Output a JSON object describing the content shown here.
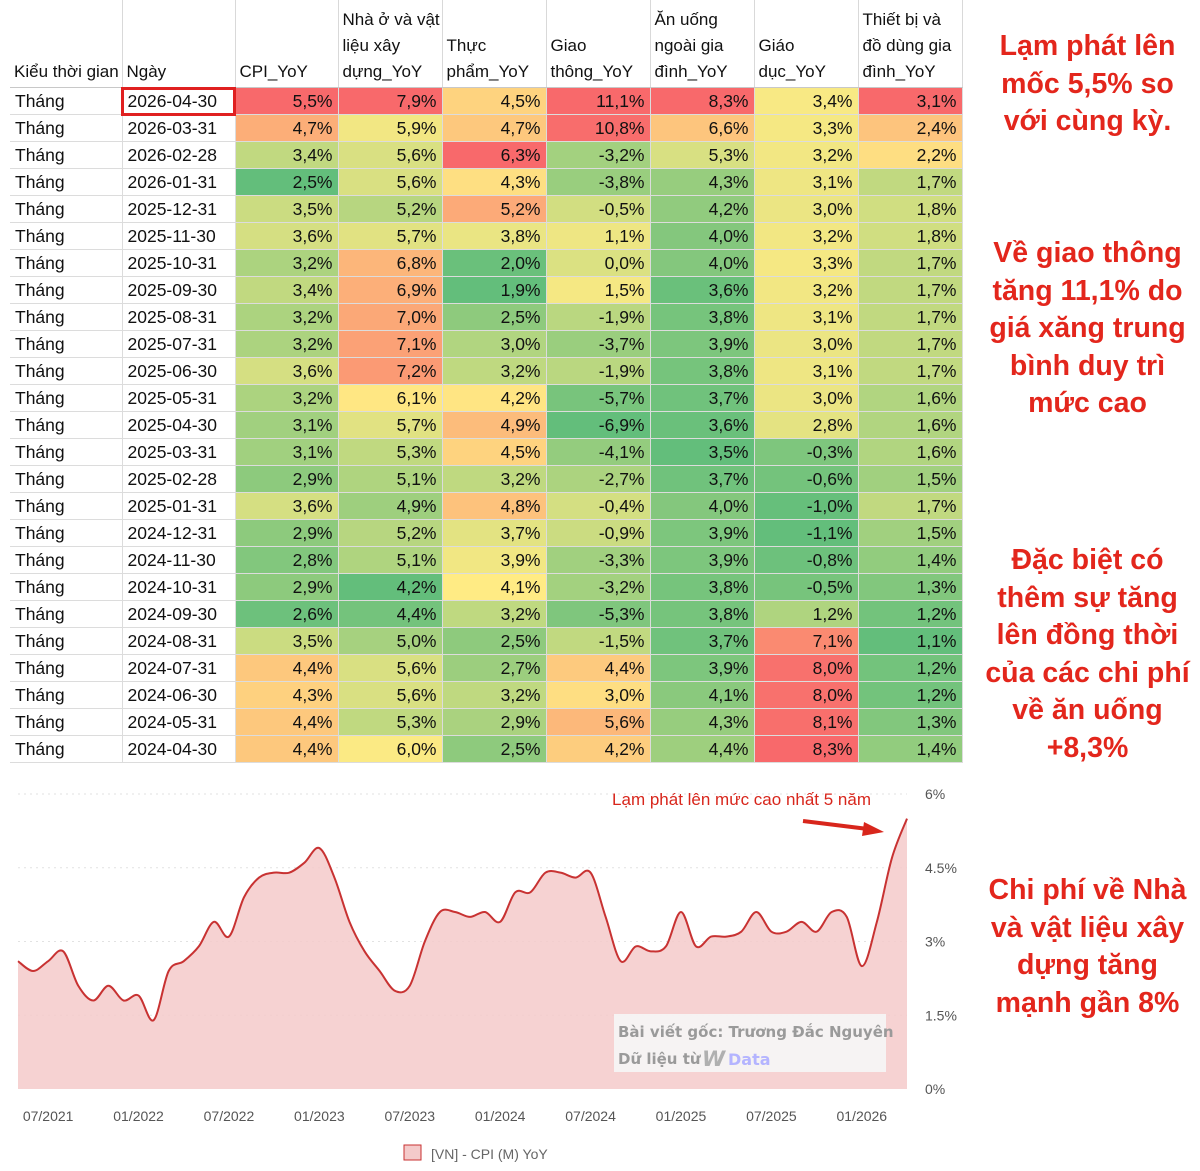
{
  "table": {
    "headers": [
      "Kiểu thời gian",
      "Ngày",
      "CPI_YoY",
      "Nhà ở và vật liệu xây dựng_YoY",
      "Thực phẩm_YoY",
      "Giao thông_YoY",
      "Ăn uống ngoài gia đình_YoY",
      "Giáo dục_YoY",
      "Thiết bị và đồ dùng gia đình_YoY"
    ],
    "highlighted_cell": "2026-04-30",
    "rows": [
      [
        "Tháng",
        "2026-04-30",
        "5,5%",
        "7,9%",
        "4,5%",
        "11,1%",
        "8,3%",
        "3,4%",
        "3,1%"
      ],
      [
        "Tháng",
        "2026-03-31",
        "4,7%",
        "5,9%",
        "4,7%",
        "10,8%",
        "6,6%",
        "3,3%",
        "2,4%"
      ],
      [
        "Tháng",
        "2026-02-28",
        "3,4%",
        "5,6%",
        "6,3%",
        "-3,2%",
        "5,3%",
        "3,2%",
        "2,2%"
      ],
      [
        "Tháng",
        "2026-01-31",
        "2,5%",
        "5,6%",
        "4,3%",
        "-3,8%",
        "4,3%",
        "3,1%",
        "1,7%"
      ],
      [
        "Tháng",
        "2025-12-31",
        "3,5%",
        "5,2%",
        "5,2%",
        "-0,5%",
        "4,2%",
        "3,0%",
        "1,8%"
      ],
      [
        "Tháng",
        "2025-11-30",
        "3,6%",
        "5,7%",
        "3,8%",
        "1,1%",
        "4,0%",
        "3,2%",
        "1,8%"
      ],
      [
        "Tháng",
        "2025-10-31",
        "3,2%",
        "6,8%",
        "2,0%",
        "0,0%",
        "4,0%",
        "3,3%",
        "1,7%"
      ],
      [
        "Tháng",
        "2025-09-30",
        "3,4%",
        "6,9%",
        "1,9%",
        "1,5%",
        "3,6%",
        "3,2%",
        "1,7%"
      ],
      [
        "Tháng",
        "2025-08-31",
        "3,2%",
        "7,0%",
        "2,5%",
        "-1,9%",
        "3,8%",
        "3,1%",
        "1,7%"
      ],
      [
        "Tháng",
        "2025-07-31",
        "3,2%",
        "7,1%",
        "3,0%",
        "-3,7%",
        "3,9%",
        "3,0%",
        "1,7%"
      ],
      [
        "Tháng",
        "2025-06-30",
        "3,6%",
        "7,2%",
        "3,2%",
        "-1,9%",
        "3,8%",
        "3,1%",
        "1,7%"
      ],
      [
        "Tháng",
        "2025-05-31",
        "3,2%",
        "6,1%",
        "4,2%",
        "-5,7%",
        "3,7%",
        "3,0%",
        "1,6%"
      ],
      [
        "Tháng",
        "2025-04-30",
        "3,1%",
        "5,7%",
        "4,9%",
        "-6,9%",
        "3,6%",
        "2,8%",
        "1,6%"
      ],
      [
        "Tháng",
        "2025-03-31",
        "3,1%",
        "5,3%",
        "4,5%",
        "-4,1%",
        "3,5%",
        "-0,3%",
        "1,6%"
      ],
      [
        "Tháng",
        "2025-02-28",
        "2,9%",
        "5,1%",
        "3,2%",
        "-2,7%",
        "3,7%",
        "-0,6%",
        "1,5%"
      ],
      [
        "Tháng",
        "2025-01-31",
        "3,6%",
        "4,9%",
        "4,8%",
        "-0,4%",
        "4,0%",
        "-1,0%",
        "1,7%"
      ],
      [
        "Tháng",
        "2024-12-31",
        "2,9%",
        "5,2%",
        "3,7%",
        "-0,9%",
        "3,9%",
        "-1,1%",
        "1,5%"
      ],
      [
        "Tháng",
        "2024-11-30",
        "2,8%",
        "5,1%",
        "3,9%",
        "-3,3%",
        "3,9%",
        "-0,8%",
        "1,4%"
      ],
      [
        "Tháng",
        "2024-10-31",
        "2,9%",
        "4,2%",
        "4,1%",
        "-3,2%",
        "3,8%",
        "-0,5%",
        "1,3%"
      ],
      [
        "Tháng",
        "2024-09-30",
        "2,6%",
        "4,4%",
        "3,2%",
        "-5,3%",
        "3,8%",
        "1,2%",
        "1,2%"
      ],
      [
        "Tháng",
        "2024-08-31",
        "3,5%",
        "5,0%",
        "2,5%",
        "-1,5%",
        "3,7%",
        "7,1%",
        "1,1%"
      ],
      [
        "Tháng",
        "2024-07-31",
        "4,4%",
        "5,6%",
        "2,7%",
        "4,4%",
        "3,9%",
        "8,0%",
        "1,2%"
      ],
      [
        "Tháng",
        "2024-06-30",
        "4,3%",
        "5,6%",
        "3,2%",
        "3,0%",
        "4,1%",
        "8,0%",
        "1,2%"
      ],
      [
        "Tháng",
        "2024-05-31",
        "4,4%",
        "5,3%",
        "2,9%",
        "5,6%",
        "4,3%",
        "8,1%",
        "1,3%"
      ],
      [
        "Tháng",
        "2024-04-30",
        "4,4%",
        "6,0%",
        "2,5%",
        "4,2%",
        "4,4%",
        "8,3%",
        "1,4%"
      ]
    ],
    "scale_colors": {
      "low": "#63be7b",
      "mid": "#ffeb84",
      "high": "#f8696b"
    }
  },
  "side_notes": [
    "Lạm phát lên mốc 5,5% so với cùng kỳ.",
    "Về giao thông tăng 11,1% do giá xăng trung bình duy trì mức cao",
    "Đặc biệt có thêm sự tăng lên đồng thời của các chi phí về ăn uống +8,3%",
    "Chi phí về Nhà và vật liệu xây dựng tăng mạnh gần 8%"
  ],
  "chart_data": {
    "type": "area",
    "series": [
      {
        "name": "[VN] - CPI (M) YoY",
        "x": [
          "2021-05",
          "2021-06",
          "2021-07",
          "2021-08",
          "2021-09",
          "2021-10",
          "2021-11",
          "2021-12",
          "2022-01",
          "2022-02",
          "2022-03",
          "2022-04",
          "2022-05",
          "2022-06",
          "2022-07",
          "2022-08",
          "2022-09",
          "2022-10",
          "2022-11",
          "2022-12",
          "2023-01",
          "2023-02",
          "2023-03",
          "2023-04",
          "2023-05",
          "2023-06",
          "2023-07",
          "2023-08",
          "2023-09",
          "2023-10",
          "2023-11",
          "2023-12",
          "2024-01",
          "2024-02",
          "2024-03",
          "2024-04",
          "2024-05",
          "2024-06",
          "2024-07",
          "2024-08",
          "2024-09",
          "2024-10",
          "2024-11",
          "2024-12",
          "2025-01",
          "2025-02",
          "2025-03",
          "2025-04",
          "2025-05",
          "2025-06",
          "2025-07",
          "2025-08",
          "2025-09",
          "2025-10",
          "2025-11",
          "2025-12",
          "2026-01",
          "2026-02",
          "2026-03",
          "2026-04"
        ],
        "values": [
          2.6,
          2.4,
          2.6,
          2.8,
          2.1,
          1.8,
          2.1,
          1.8,
          1.9,
          1.4,
          2.4,
          2.6,
          2.9,
          3.4,
          3.1,
          3.9,
          4.3,
          4.4,
          4.4,
          4.6,
          4.9,
          4.3,
          3.4,
          2.8,
          2.4,
          2.0,
          2.1,
          3.0,
          3.6,
          3.6,
          3.5,
          3.6,
          3.4,
          4.0,
          4.0,
          4.4,
          4.4,
          4.3,
          4.4,
          3.5,
          2.6,
          2.9,
          2.8,
          2.9,
          3.6,
          2.9,
          3.1,
          3.1,
          3.2,
          3.6,
          3.2,
          3.2,
          3.4,
          3.2,
          3.6,
          3.5,
          2.5,
          3.4,
          4.7,
          5.5
        ]
      }
    ],
    "x_tick_labels": [
      "07/2021",
      "01/2022",
      "07/2022",
      "01/2023",
      "07/2023",
      "01/2024",
      "07/2024",
      "01/2025",
      "07/2025",
      "01/2026"
    ],
    "y_tick_labels": [
      "0%",
      "1.5%",
      "3%",
      "4.5%",
      "6%"
    ],
    "ylim": [
      0,
      6
    ],
    "grid": true,
    "legend": "bottom",
    "annotation": "Lạm phát lên mức cao nhất 5 năm",
    "watermark_lines": [
      "Bài viết gốc: Trương Đắc Nguyên",
      "Dữ liệu từ"
    ],
    "watermark_brand": "Data",
    "colors": {
      "line": "#c83232",
      "fill": "#f4caca",
      "annotation": "#d8261c"
    }
  }
}
